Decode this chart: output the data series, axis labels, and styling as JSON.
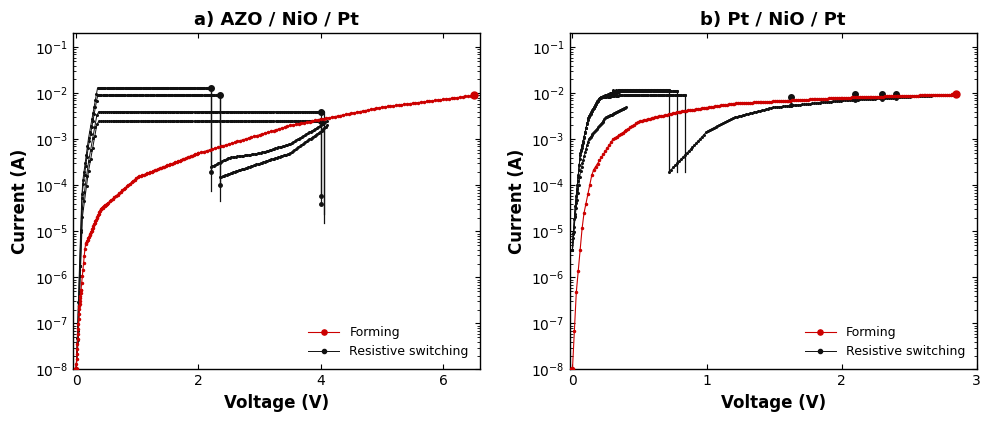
{
  "panel_a": {
    "title": "a) AZO / NiO / Pt",
    "xlabel": "Voltage (V)",
    "ylabel": "Current (A)",
    "xlim": [
      -0.05,
      6.6
    ],
    "ylim": [
      1e-08,
      0.2
    ],
    "xticks": [
      0,
      2,
      4,
      6
    ],
    "forming_color": "#cc0000",
    "switching_color": "#111111"
  },
  "panel_b": {
    "title": "b) Pt / NiO / Pt",
    "xlabel": "Voltage (V)",
    "ylabel": "Current (A)",
    "xlim": [
      -0.02,
      3.0
    ],
    "ylim": [
      1e-08,
      0.2
    ],
    "xticks": [
      0,
      1,
      2,
      3
    ],
    "forming_color": "#cc0000",
    "switching_color": "#111111"
  },
  "legend_forming": "Forming",
  "legend_switching": "Resistive switching",
  "background": "#ffffff"
}
